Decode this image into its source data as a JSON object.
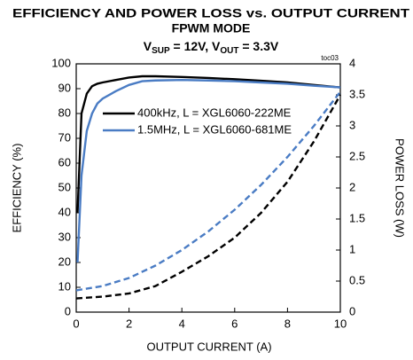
{
  "chart_data": {
    "type": "line",
    "title": [
      "EFFICIENCY AND POWER LOSS vs. OUTPUT CURRENT",
      "FPWM MODE"
    ],
    "subtitle": [
      "V",
      "SUP",
      " = 12V, V",
      "OUT",
      " = 3.3V"
    ],
    "annotation": "toc03",
    "x_label": "OUTPUT CURRENT (A)",
    "y_label": "EFFICIENCY (%)",
    "y2_label": "POWER LOSS (W)",
    "xlim": [
      0,
      10
    ],
    "xticks": [
      0,
      2,
      4,
      6,
      8,
      10
    ],
    "ylim": [
      0,
      100
    ],
    "yticks": [
      0,
      10,
      20,
      30,
      40,
      50,
      60,
      70,
      80,
      90,
      100
    ],
    "y2lim": [
      0,
      4
    ],
    "y2ticks": [
      0,
      0.5,
      1,
      1.5,
      2,
      2.5,
      3,
      3.5,
      4
    ],
    "series": [
      {
        "name": "400kHz, L = XGL6060-222ME",
        "color": "#000000",
        "style": "solid",
        "x": [
          0.05,
          0.2,
          0.4,
          0.6,
          0.8,
          1,
          1.5,
          2,
          2.5,
          3,
          4,
          5,
          6,
          7,
          8,
          9,
          10
        ],
        "values": [
          40,
          80,
          88,
          91,
          92,
          92.5,
          93.5,
          94.5,
          95,
          95,
          94.7,
          94.3,
          93.8,
          93.2,
          92.5,
          91.5,
          90.5
        ]
      },
      {
        "name": "1.5MHz, L = XGL6060-681ME",
        "color": "#4a7cc4",
        "style": "solid",
        "x": [
          0.05,
          0.2,
          0.4,
          0.6,
          0.8,
          1,
          1.5,
          2,
          2.5,
          3,
          4,
          5,
          6,
          7,
          8,
          9,
          10
        ],
        "values": [
          20,
          55,
          73,
          80,
          84,
          86,
          89,
          91.5,
          93,
          93.3,
          93.5,
          93.3,
          93,
          92.5,
          92,
          91.2,
          90.5
        ]
      },
      {
        "color": "#000000",
        "style": "dashed",
        "axis": "y2",
        "x": [
          0,
          1,
          2,
          3,
          4,
          5,
          6,
          7,
          8,
          9,
          10
        ],
        "values": [
          0.22,
          0.25,
          0.3,
          0.42,
          0.65,
          0.9,
          1.2,
          1.6,
          2.1,
          2.75,
          3.5
        ]
      },
      {
        "color": "#4a7cc4",
        "style": "dashed",
        "axis": "y2",
        "x": [
          0,
          1,
          2,
          3,
          4,
          5,
          6,
          7,
          8,
          9,
          10
        ],
        "values": [
          0.35,
          0.42,
          0.55,
          0.75,
          1.0,
          1.3,
          1.65,
          2.05,
          2.5,
          3.0,
          3.55
        ]
      }
    ]
  }
}
